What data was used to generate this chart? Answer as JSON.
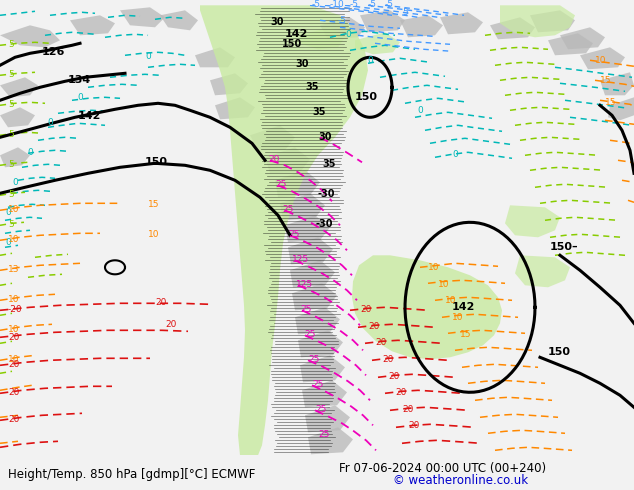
{
  "title_left": "Height/Temp. 850 hPa [gdmp][°C] ECMWF",
  "title_right": "Fr 07-06-2024 00:00 UTC (00+240)",
  "copyright": "© weatheronline.co.uk",
  "bg_color": "#f2f2f2",
  "green_fill": "#c8eaa0",
  "gray_fill": "#b8b8b8",
  "footer_fontsize": 8.5,
  "copyright_color": "#0000cc"
}
